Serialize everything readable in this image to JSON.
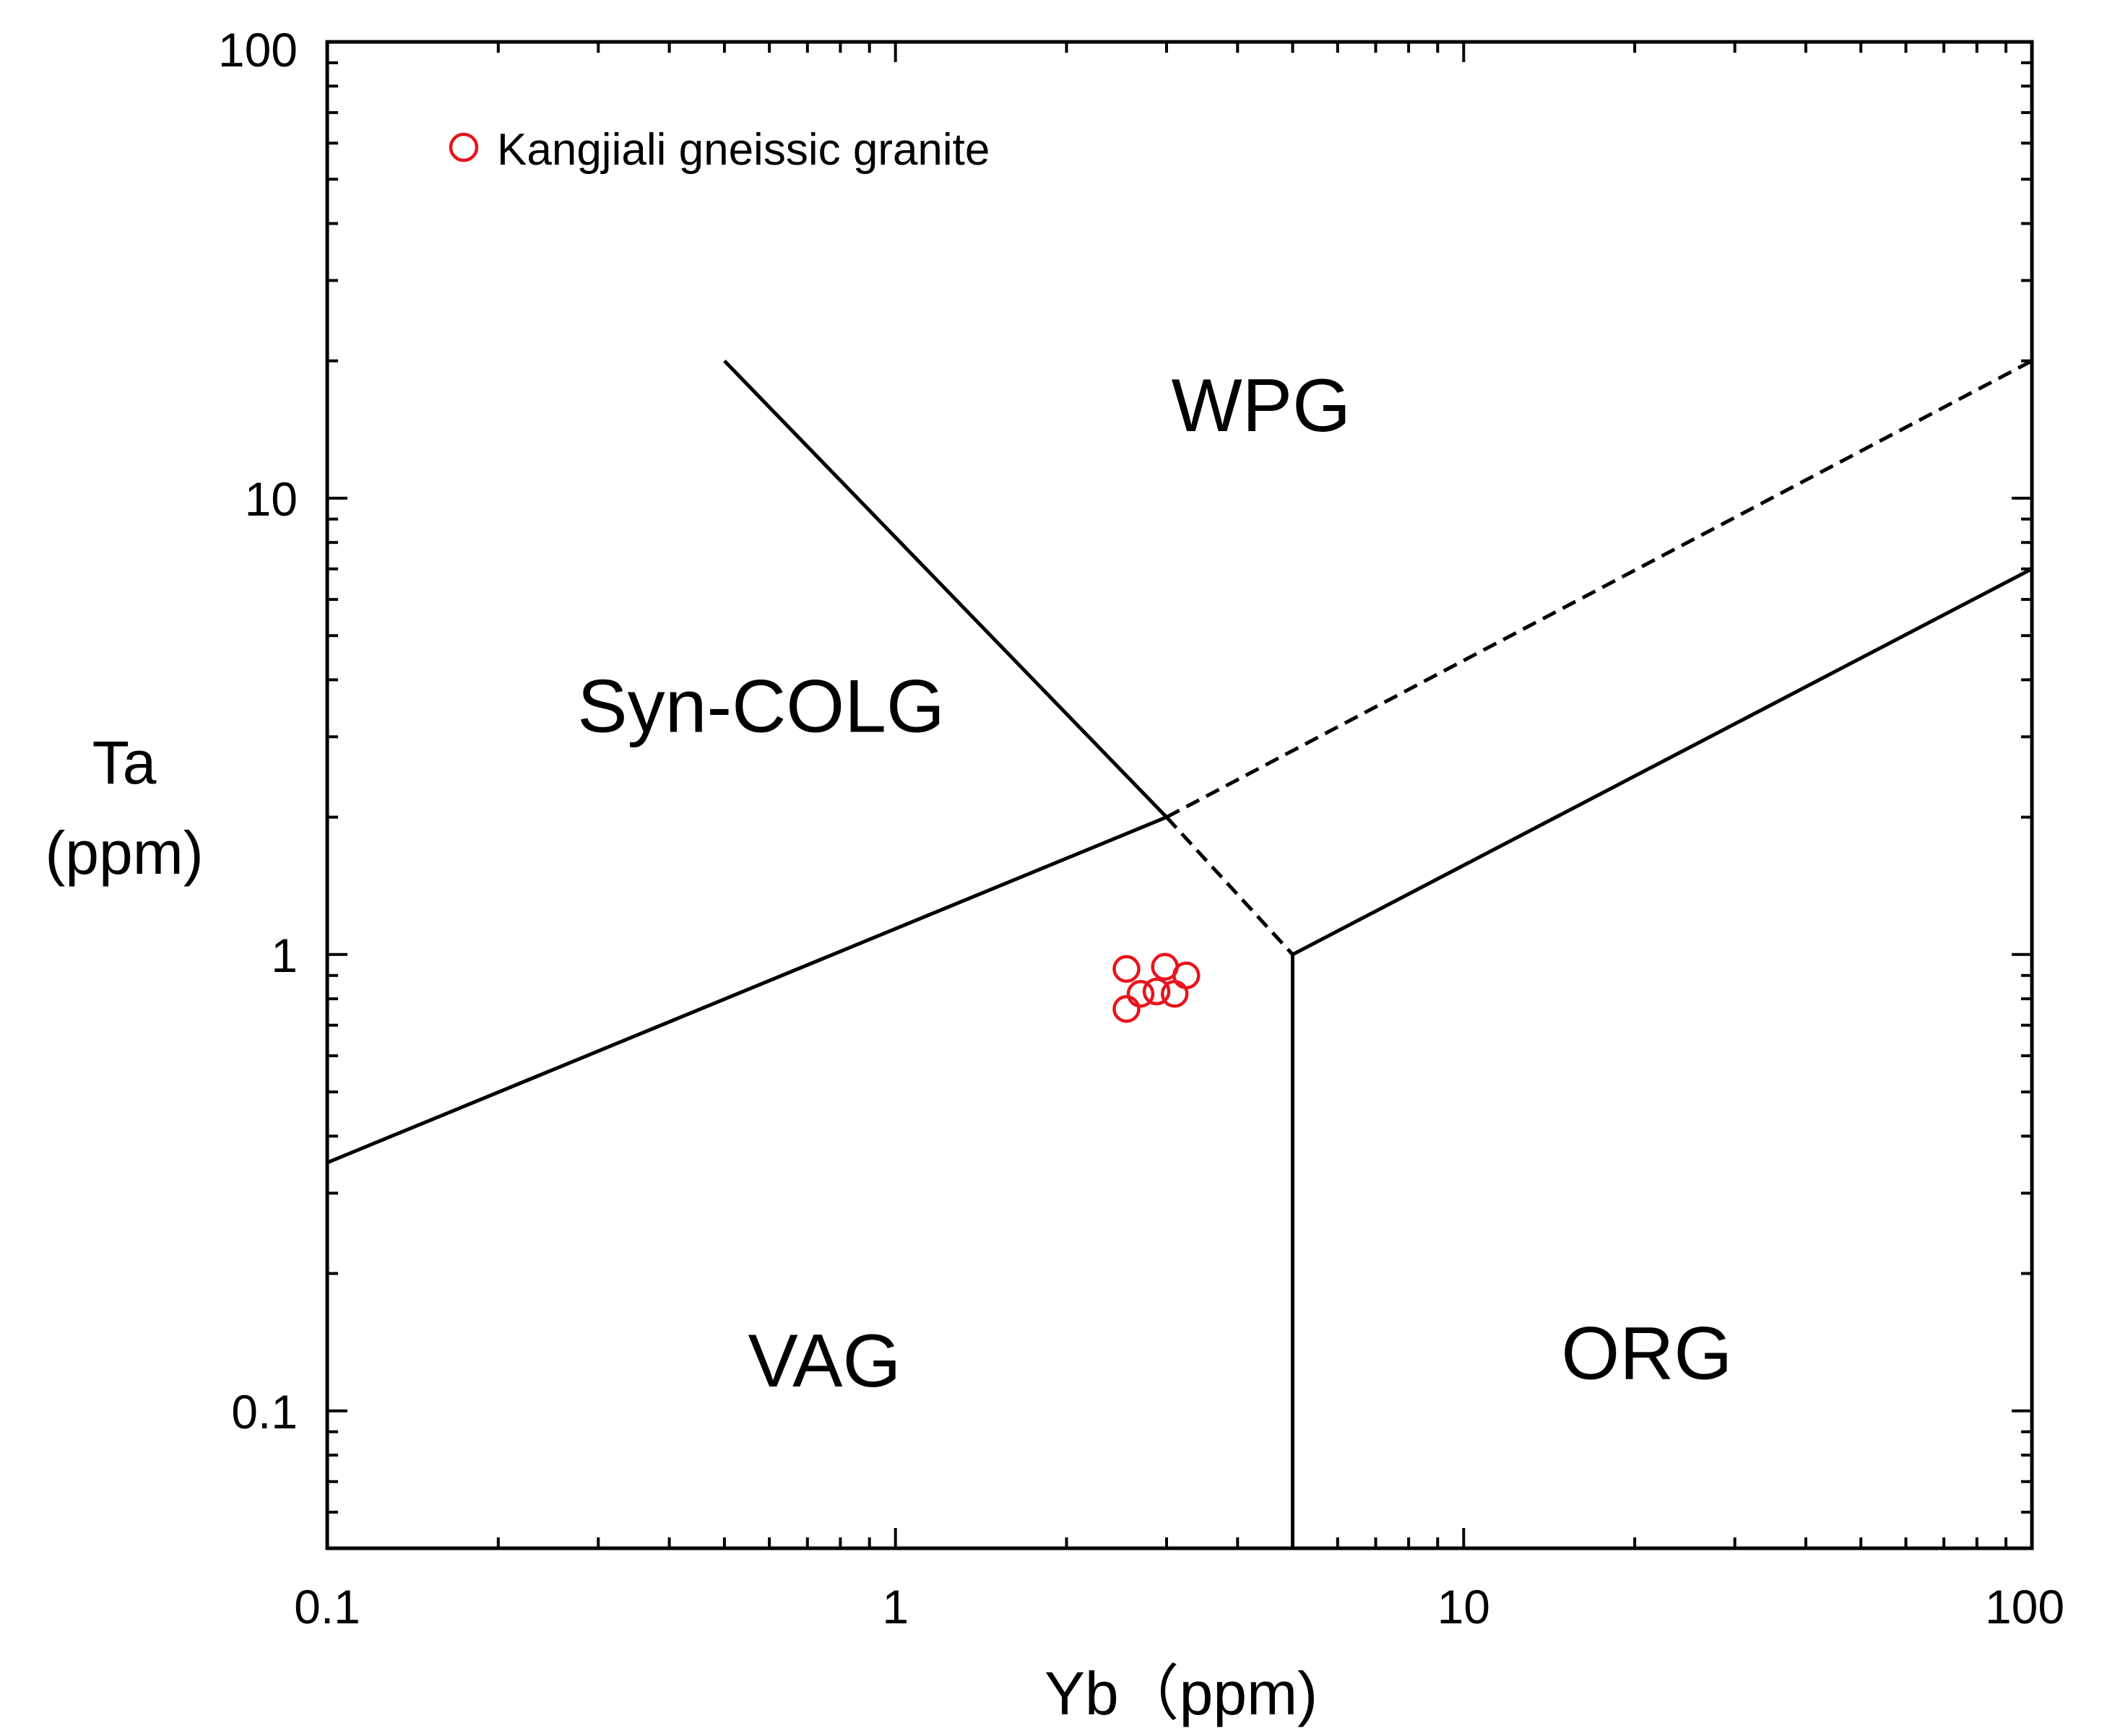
{
  "chart_data": {
    "type": "scatter",
    "x_scale": "log",
    "y_scale": "log",
    "xlim": [
      0.1,
      100
    ],
    "ylim": [
      0.05,
      100
    ],
    "xlabel": "Yb（ppm)",
    "ylabel_line1": "Ta",
    "ylabel_line2": "(ppm)",
    "x_ticks": [
      {
        "value": 0.1,
        "label": "0.1"
      },
      {
        "value": 1,
        "label": "1"
      },
      {
        "value": 10,
        "label": "10"
      },
      {
        "value": 100,
        "label": "100"
      }
    ],
    "y_ticks": [
      {
        "value": 0.1,
        "label": "0.1"
      },
      {
        "value": 1,
        "label": "1"
      },
      {
        "value": 10,
        "label": "10"
      },
      {
        "value": 100,
        "label": "100"
      }
    ],
    "legend": {
      "location": "top-left",
      "label": "Kangjiali gneissic granite",
      "marker": "open-circle",
      "color": "#e8141c"
    },
    "series": [
      {
        "name": "Kangjiali gneissic granite",
        "points": [
          {
            "x": 2.55,
            "y": 0.93
          },
          {
            "x": 2.98,
            "y": 0.94
          },
          {
            "x": 3.25,
            "y": 0.9
          },
          {
            "x": 2.7,
            "y": 0.82
          },
          {
            "x": 2.88,
            "y": 0.83
          },
          {
            "x": 3.1,
            "y": 0.82
          },
          {
            "x": 2.55,
            "y": 0.76
          }
        ]
      }
    ],
    "boundaries": [
      {
        "name": "vag-syncolg-boundary",
        "style": "solid",
        "points": [
          [
            0.1,
            0.35
          ],
          [
            3.0,
            2.0
          ]
        ]
      },
      {
        "name": "syncolg-wpg-boundary",
        "style": "solid",
        "points": [
          [
            0.5,
            20
          ],
          [
            3.0,
            2.0
          ]
        ]
      },
      {
        "name": "wpg-org-boundary-dashed",
        "style": "dashed",
        "points": [
          [
            3.0,
            2.0
          ],
          [
            100,
            20
          ]
        ]
      },
      {
        "name": "vag-wpg-boundary-dashed",
        "style": "dashed",
        "points": [
          [
            3.0,
            2.0
          ],
          [
            5.0,
            1.0
          ]
        ]
      },
      {
        "name": "wpg-org-boundary",
        "style": "solid",
        "points": [
          [
            5.0,
            1.0
          ],
          [
            100,
            7.0
          ]
        ]
      },
      {
        "name": "vag-org-boundary",
        "style": "solid",
        "points": [
          [
            5.0,
            1.0
          ],
          [
            5.0,
            0.05
          ]
        ]
      }
    ],
    "field_labels": [
      {
        "name": "WPG",
        "text": "WPG",
        "x": 4.4,
        "y": 15.5
      },
      {
        "name": "Syn-COLG",
        "text": "Syn-COLG",
        "x": 0.58,
        "y": 3.4
      },
      {
        "name": "VAG",
        "text": "VAG",
        "x": 0.75,
        "y": 0.125
      },
      {
        "name": "ORG",
        "text": "ORG",
        "x": 21,
        "y": 0.13
      }
    ]
  }
}
